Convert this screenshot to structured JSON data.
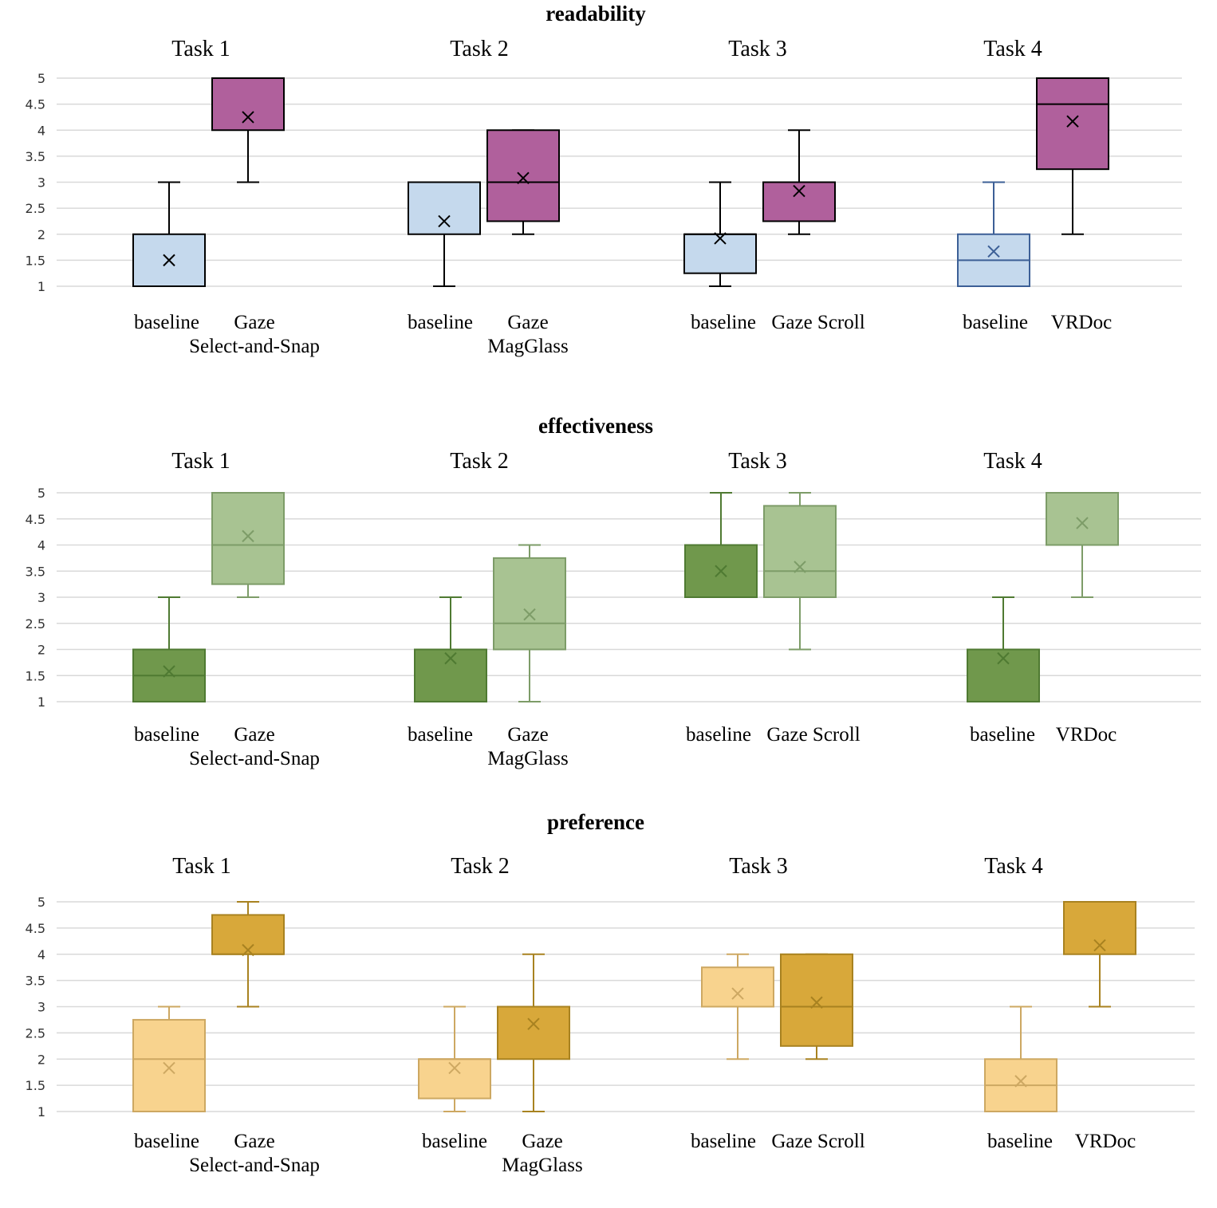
{
  "chart_data": [
    {
      "type": "box",
      "title": "readability",
      "ylim": [
        1,
        5
      ],
      "yticks": [
        "1",
        "1.5",
        "2",
        "2.5",
        "3",
        "3.5",
        "4",
        "4.5",
        "5"
      ],
      "grid": true,
      "tasks": [
        {
          "label": "Task 1",
          "boxes": [
            {
              "name": [
                "baseline"
              ],
              "min": 1,
              "q1": 1,
              "median": 1,
              "q3": 2,
              "max": 3,
              "mean": 1.5,
              "fill": "#c5d9ed",
              "stroke": "#000000"
            },
            {
              "name": [
                "Gaze",
                "Select-and-Snap"
              ],
              "min": 3,
              "q1": 4,
              "median": 5,
              "q3": 5,
              "max": 5,
              "mean": 4.25,
              "fill": "#b0609c",
              "stroke": "#000000"
            }
          ]
        },
        {
          "label": "Task 2",
          "boxes": [
            {
              "name": [
                "baseline"
              ],
              "min": 1,
              "q1": 2,
              "median": 3,
              "q3": 3,
              "max": 3,
              "mean": 2.25,
              "fill": "#c5d9ed",
              "stroke": "#000000"
            },
            {
              "name": [
                "Gaze",
                "MagGlass"
              ],
              "min": 2,
              "q1": 2.25,
              "median": 3,
              "q3": 4,
              "max": 4,
              "mean": 3.08,
              "fill": "#b0609c",
              "stroke": "#000000"
            }
          ]
        },
        {
          "label": "Task 3",
          "boxes": [
            {
              "name": [
                "baseline"
              ],
              "min": 1,
              "q1": 1.25,
              "median": 2,
              "q3": 2,
              "max": 3,
              "mean": 1.92,
              "fill": "#c5d9ed",
              "stroke": "#000000"
            },
            {
              "name": [
                "Gaze Scroll"
              ],
              "min": 2,
              "q1": 2.25,
              "median": 3,
              "q3": 3,
              "max": 4,
              "mean": 2.83,
              "fill": "#b0609c",
              "stroke": "#000000"
            }
          ]
        },
        {
          "label": "Task 4",
          "boxes": [
            {
              "name": [
                "baseline"
              ],
              "min": 1,
              "q1": 1,
              "median": 1.5,
              "q3": 2,
              "max": 3,
              "mean": 1.67,
              "fill": "#c5d9ed",
              "stroke": "#3c5f96"
            },
            {
              "name": [
                "VRDoc"
              ],
              "min": 2,
              "q1": 3.25,
              "median": 4.5,
              "q3": 5,
              "max": 5,
              "mean": 4.17,
              "fill": "#b0609c",
              "stroke": "#000000"
            }
          ]
        }
      ]
    },
    {
      "type": "box",
      "title": "effectiveness",
      "ylim": [
        1,
        5
      ],
      "yticks": [
        "1",
        "1.5",
        "2",
        "2.5",
        "3",
        "3.5",
        "4",
        "4.5",
        "5"
      ],
      "grid": true,
      "tasks": [
        {
          "label": "Task 1",
          "boxes": [
            {
              "name": [
                "baseline"
              ],
              "min": 1,
              "q1": 1,
              "median": 1.5,
              "q3": 2,
              "max": 3,
              "mean": 1.58,
              "fill": "#70984c",
              "stroke": "#4f7a32"
            },
            {
              "name": [
                "Gaze",
                "Select-and-Snap"
              ],
              "min": 3,
              "q1": 3.25,
              "median": 4,
              "q3": 5,
              "max": 5,
              "mean": 4.17,
              "fill": "#a8c392",
              "stroke": "#7d9c68"
            }
          ]
        },
        {
          "label": "Task 2",
          "boxes": [
            {
              "name": [
                "baseline"
              ],
              "min": 1,
              "q1": 1,
              "median": 2,
              "q3": 2,
              "max": 3,
              "mean": 1.83,
              "fill": "#70984c",
              "stroke": "#4f7a32"
            },
            {
              "name": [
                "Gaze",
                "MagGlass"
              ],
              "min": 1,
              "q1": 2,
              "median": 2.5,
              "q3": 3.75,
              "max": 4,
              "mean": 2.67,
              "fill": "#a8c392",
              "stroke": "#7d9c68"
            }
          ]
        },
        {
          "label": "Task 3",
          "boxes": [
            {
              "name": [
                "baseline"
              ],
              "min": 3,
              "q1": 3,
              "median": 4,
              "q3": 4,
              "max": 5,
              "mean": 3.5,
              "fill": "#70984c",
              "stroke": "#4f7a32"
            },
            {
              "name": [
                "Gaze Scroll"
              ],
              "min": 2,
              "q1": 3,
              "median": 3.5,
              "q3": 4.75,
              "max": 5,
              "mean": 3.58,
              "fill": "#a8c392",
              "stroke": "#7d9c68"
            }
          ]
        },
        {
          "label": "Task 4",
          "boxes": [
            {
              "name": [
                "baseline"
              ],
              "min": 1,
              "q1": 1,
              "median": 2,
              "q3": 2,
              "max": 3,
              "mean": 1.83,
              "fill": "#70984c",
              "stroke": "#4f7a32"
            },
            {
              "name": [
                "VRDoc"
              ],
              "min": 3,
              "q1": 4,
              "median": 5,
              "q3": 5,
              "max": 5,
              "mean": 4.42,
              "fill": "#a8c392",
              "stroke": "#7d9c68"
            }
          ]
        }
      ]
    },
    {
      "type": "box",
      "title": "preference",
      "ylim": [
        1,
        5
      ],
      "yticks": [
        "1",
        "1.5",
        "2",
        "2.5",
        "3",
        "3.5",
        "4",
        "4.5",
        "5"
      ],
      "grid": true,
      "tasks": [
        {
          "label": "Task 1",
          "boxes": [
            {
              "name": [
                "baseline"
              ],
              "min": 1,
              "q1": 1,
              "median": 2,
              "q3": 2.75,
              "max": 3,
              "mean": 1.83,
              "fill": "#f8d38e",
              "stroke": "#cda862"
            },
            {
              "name": [
                "Gaze",
                "Select-and-Snap"
              ],
              "min": 3,
              "q1": 4,
              "median": 4,
              "q3": 4.75,
              "max": 5,
              "mean": 4.08,
              "fill": "#d8a83a",
              "stroke": "#a88220"
            }
          ]
        },
        {
          "label": "Task 2",
          "boxes": [
            {
              "name": [
                "baseline"
              ],
              "min": 1,
              "q1": 1.25,
              "median": 2,
              "q3": 2,
              "max": 3,
              "mean": 1.83,
              "fill": "#f8d38e",
              "stroke": "#cda862"
            },
            {
              "name": [
                "Gaze",
                "MagGlass"
              ],
              "min": 1,
              "q1": 2,
              "median": 3,
              "q3": 3,
              "max": 4,
              "mean": 2.67,
              "fill": "#d8a83a",
              "stroke": "#a88220"
            }
          ]
        },
        {
          "label": "Task 3",
          "boxes": [
            {
              "name": [
                "baseline"
              ],
              "min": 2,
              "q1": 3,
              "median": 3,
              "q3": 3.75,
              "max": 4,
              "mean": 3.25,
              "fill": "#f8d38e",
              "stroke": "#cda862"
            },
            {
              "name": [
                "Gaze Scroll"
              ],
              "min": 2,
              "q1": 2.25,
              "median": 3,
              "q3": 4,
              "max": 4,
              "mean": 3.08,
              "fill": "#d8a83a",
              "stroke": "#a88220"
            }
          ]
        },
        {
          "label": "Task 4",
          "boxes": [
            {
              "name": [
                "baseline"
              ],
              "min": 1,
              "q1": 1,
              "median": 1.5,
              "q3": 2,
              "max": 3,
              "mean": 1.58,
              "fill": "#f8d38e",
              "stroke": "#cda862"
            },
            {
              "name": [
                "VRDoc"
              ],
              "min": 3,
              "q1": 4,
              "median": 5,
              "q3": 5,
              "max": 5,
              "mean": 4.17,
              "fill": "#d8a83a",
              "stroke": "#a88220"
            }
          ]
        }
      ]
    }
  ]
}
